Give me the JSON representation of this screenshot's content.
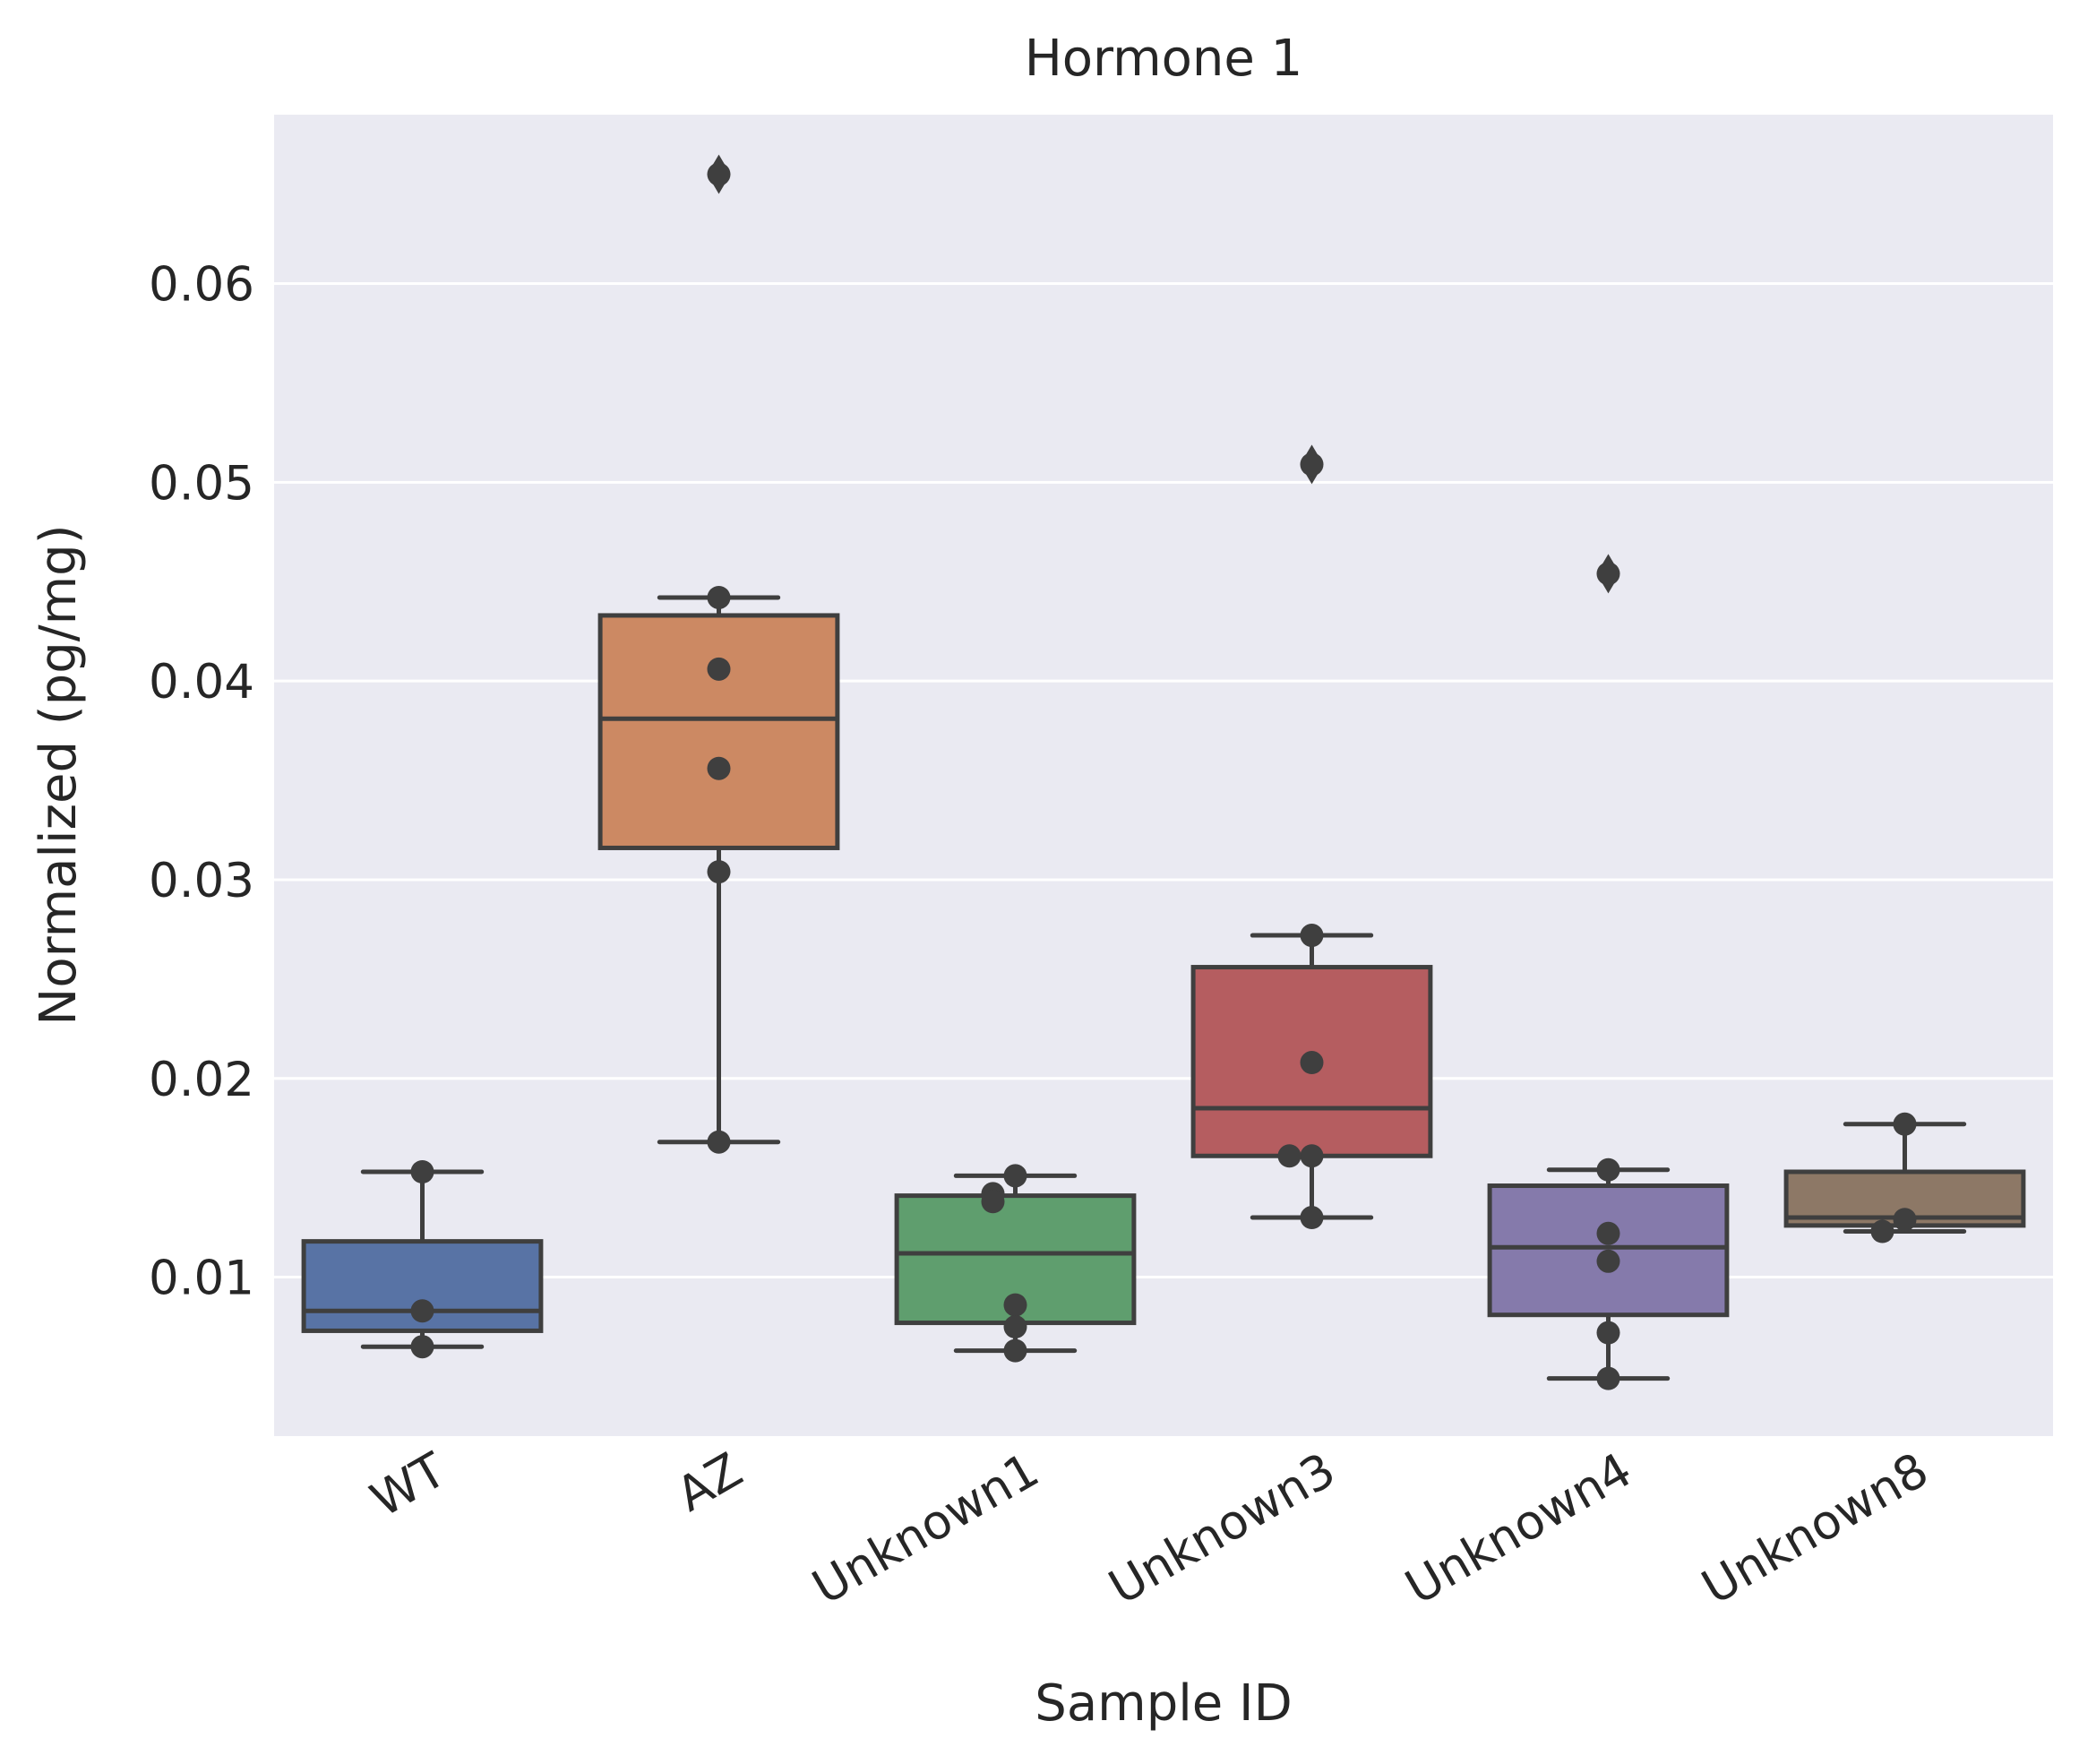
{
  "chart_data": {
    "type": "box",
    "title": "Hormone 1",
    "xlabel": "Sample ID",
    "ylabel": "Normalized (pg/mg)",
    "ylim": [
      0.002,
      0.0685
    ],
    "yticks": [
      0.01,
      0.02,
      0.03,
      0.04,
      0.05,
      0.06
    ],
    "ytick_labels": [
      "0.01",
      "0.02",
      "0.03",
      "0.04",
      "0.05",
      "0.06"
    ],
    "grid": true,
    "categories": [
      "WT",
      "AZ",
      "Unknown1",
      "Unknown3",
      "Unknown4",
      "Unknown8"
    ],
    "colors": [
      "#5873a5",
      "#cc8963",
      "#5f9e6e",
      "#b55d60",
      "#857aab",
      "#8d7866"
    ],
    "edge_color": "#3f3f3f",
    "background_color": "#eaeaf2",
    "grid_color": "#ffffff",
    "boxes": [
      {
        "q1": 0.0073,
        "median": 0.0083,
        "q3": 0.0118,
        "whisker_low": 0.0065,
        "whisker_high": 0.0153,
        "outliers": []
      },
      {
        "q1": 0.0316,
        "median": 0.0381,
        "q3": 0.0433,
        "whisker_low": 0.0168,
        "whisker_high": 0.0442,
        "outliers": [
          0.0655
        ]
      },
      {
        "q1": 0.0077,
        "median": 0.0112,
        "q3": 0.0141,
        "whisker_low": 0.0063,
        "whisker_high": 0.0151,
        "outliers": []
      },
      {
        "q1": 0.0161,
        "median": 0.0185,
        "q3": 0.0256,
        "whisker_low": 0.013,
        "whisker_high": 0.0272,
        "outliers": [
          0.0509
        ]
      },
      {
        "q1": 0.0081,
        "median": 0.0115,
        "q3": 0.0146,
        "whisker_low": 0.0049,
        "whisker_high": 0.0154,
        "outliers": [
          0.0454
        ]
      },
      {
        "q1": 0.0126,
        "median": 0.013,
        "q3": 0.0153,
        "whisker_low": 0.0123,
        "whisker_high": 0.0177,
        "outliers": []
      }
    ],
    "points": [
      [
        0.0153,
        0.0083,
        0.0065
      ],
      [
        0.0655,
        0.0442,
        0.0406,
        0.0356,
        0.0304,
        0.0168
      ],
      [
        0.0151,
        0.0142,
        0.0138,
        0.0086,
        0.0075,
        0.0063
      ],
      [
        0.0509,
        0.0272,
        0.0208,
        0.0161,
        0.0161,
        0.013
      ],
      [
        0.0454,
        0.0154,
        0.0122,
        0.0108,
        0.0072,
        0.0049
      ],
      [
        0.0177,
        0.0129,
        0.0123
      ]
    ]
  }
}
